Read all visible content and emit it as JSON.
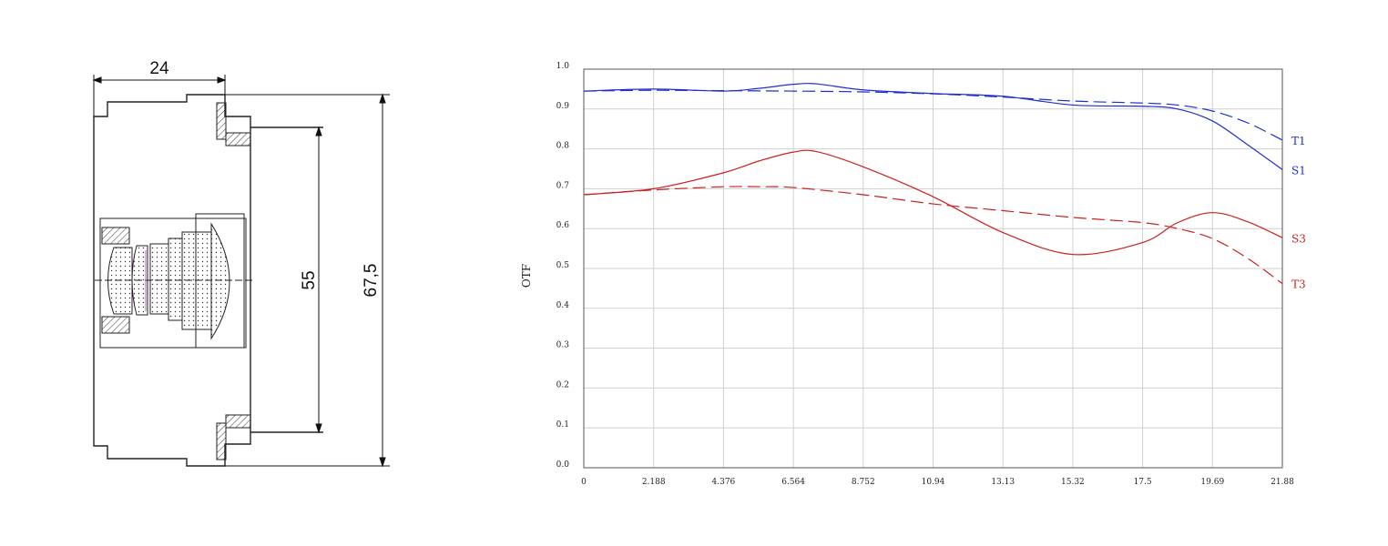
{
  "drawing": {
    "dim_width": "24",
    "dim_inner": "55",
    "dim_outer": "67,5"
  },
  "chart_data": {
    "type": "line",
    "ylabel": "OTF",
    "xlim": [
      0,
      21.88
    ],
    "ylim": [
      0,
      1.0
    ],
    "x_ticks": [
      "0",
      "2.188",
      "4.376",
      "6.564",
      "8.752",
      "10.94",
      "13.13",
      "15.32",
      "17.5",
      "19.69",
      "21.88"
    ],
    "y_ticks": [
      "0.0",
      "0.1",
      "0.2",
      "0.3",
      "0.4",
      "0.5",
      "0.6",
      "0.7",
      "0.8",
      "0.9",
      "1.0"
    ],
    "grid": true,
    "series": [
      {
        "name": "T1",
        "color": "#1f2fd0",
        "dash": true,
        "x": [
          0,
          2.188,
          4.376,
          6.564,
          8.752,
          10.94,
          13.13,
          15.32,
          17.5,
          18.6,
          19.69,
          20.8,
          21.88
        ],
        "y": [
          0.945,
          0.947,
          0.946,
          0.945,
          0.943,
          0.938,
          0.93,
          0.92,
          0.915,
          0.91,
          0.895,
          0.865,
          0.822
        ]
      },
      {
        "name": "S1",
        "color": "#1f2fd0",
        "dash": false,
        "x": [
          0,
          2.188,
          4.376,
          5.5,
          6.564,
          7.3,
          8.752,
          10.94,
          13.13,
          15.32,
          17.5,
          18.6,
          19.69,
          20.8,
          21.88
        ],
        "y": [
          0.945,
          0.95,
          0.945,
          0.952,
          0.962,
          0.963,
          0.948,
          0.939,
          0.932,
          0.91,
          0.907,
          0.9,
          0.87,
          0.81,
          0.748
        ]
      },
      {
        "name": "S3",
        "color": "#cc2020",
        "dash": false,
        "x": [
          0,
          2.188,
          4.376,
          5.5,
          6.564,
          7.3,
          8.752,
          10.94,
          13.13,
          15.32,
          17.5,
          18.6,
          19.69,
          20.8,
          21.88
        ],
        "y": [
          0.685,
          0.7,
          0.74,
          0.77,
          0.792,
          0.793,
          0.755,
          0.68,
          0.59,
          0.535,
          0.565,
          0.615,
          0.64,
          0.617,
          0.577
        ]
      },
      {
        "name": "T3",
        "color": "#cc2020",
        "dash": true,
        "x": [
          0,
          2.188,
          4.376,
          5.5,
          6.564,
          8.752,
          10.94,
          13.13,
          15.32,
          17.5,
          18.6,
          19.69,
          20.8,
          21.88
        ],
        "y": [
          0.685,
          0.697,
          0.705,
          0.705,
          0.703,
          0.685,
          0.662,
          0.645,
          0.628,
          0.615,
          0.6,
          0.575,
          0.525,
          0.462
        ]
      }
    ]
  }
}
